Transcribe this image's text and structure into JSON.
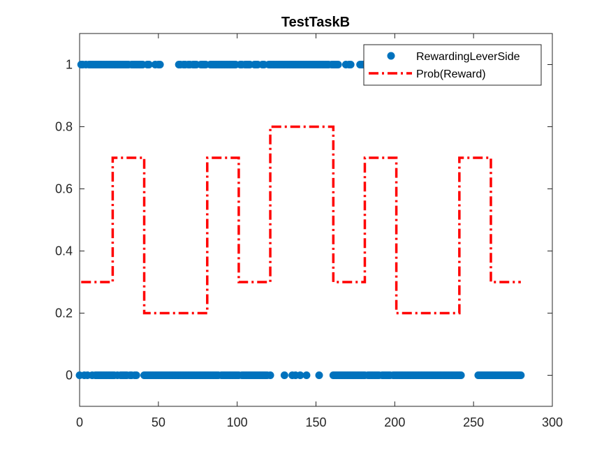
{
  "chart_data": {
    "type": "scatter+step-line",
    "title": "TestTaskB",
    "xlabel": "",
    "ylabel": "",
    "xlim": [
      0,
      300
    ],
    "ylim": [
      -0.1,
      1.1
    ],
    "xticks": [
      0,
      50,
      100,
      150,
      200,
      250,
      300
    ],
    "yticks": [
      0,
      0.2,
      0.4,
      0.6,
      0.8,
      1
    ],
    "ytick_labels": [
      "0",
      "0.2",
      "0.4",
      "0.6",
      "0.8",
      "1"
    ],
    "xtick_labels": [
      "0",
      "50",
      "100",
      "150",
      "200",
      "250",
      "300"
    ],
    "grid": false,
    "legend_position": "top-right",
    "series": [
      {
        "name": "RewardingLeverSide",
        "kind": "scatter",
        "color": "#0072BD",
        "ones_x": [
          1,
          2,
          4,
          6,
          7,
          8,
          9,
          10,
          11,
          12,
          13,
          14,
          15,
          16,
          17,
          18,
          19,
          20,
          21,
          22,
          23,
          24,
          25,
          26,
          27,
          28,
          29,
          30,
          31,
          33,
          34,
          35,
          36,
          37,
          38,
          39,
          40,
          43,
          44,
          48,
          50,
          51,
          63,
          64,
          66,
          67,
          69,
          70,
          72,
          73,
          74,
          77,
          78,
          79,
          80,
          83,
          84,
          85,
          86,
          87,
          88,
          89,
          90,
          91,
          92,
          93,
          94,
          95,
          96,
          97,
          98,
          99,
          102,
          103,
          105,
          106,
          107,
          108,
          111,
          112,
          113,
          116,
          117,
          120,
          121,
          122,
          123,
          124,
          125,
          126,
          127,
          128,
          129,
          130,
          131,
          132,
          133,
          134,
          135,
          136,
          137,
          138,
          139,
          140,
          141,
          142,
          143,
          144,
          145,
          146,
          147,
          148,
          149,
          150,
          151,
          152,
          153,
          154,
          155,
          156,
          157,
          158,
          160,
          161,
          162,
          163,
          164,
          169,
          171,
          172,
          178,
          179,
          180,
          181,
          182,
          184,
          185,
          186,
          187,
          190,
          191,
          192,
          193,
          194,
          195,
          196,
          197,
          198,
          199,
          200,
          201,
          204,
          206,
          211,
          212
        ],
        "zeros_x": [
          0,
          3,
          5,
          8,
          10,
          11,
          12,
          13,
          14,
          15,
          16,
          17,
          18,
          19,
          20,
          21,
          22,
          24,
          26,
          27,
          28,
          29,
          30,
          32,
          33,
          35,
          36,
          41,
          42,
          43,
          44,
          45,
          46,
          47,
          48,
          49,
          50,
          51,
          52,
          53,
          54,
          55,
          56,
          57,
          58,
          59,
          60,
          61,
          62,
          63,
          64,
          65,
          66,
          67,
          68,
          69,
          70,
          71,
          72,
          73,
          74,
          75,
          76,
          77,
          78,
          79,
          80,
          81,
          82,
          83,
          84,
          85,
          86,
          87,
          88,
          90,
          91,
          92,
          93,
          94,
          95,
          96,
          97,
          98,
          99,
          100,
          101,
          103,
          104,
          105,
          106,
          107,
          108,
          109,
          110,
          111,
          112,
          113,
          114,
          115,
          116,
          117,
          118,
          119,
          121,
          130,
          135,
          137,
          140,
          144,
          152,
          161,
          162,
          163,
          164,
          165,
          166,
          167,
          168,
          169,
          170,
          171,
          172,
          173,
          174,
          175,
          176,
          177,
          178,
          179,
          180,
          181,
          183,
          184,
          185,
          186,
          187,
          188,
          189,
          190,
          192,
          193,
          194,
          195,
          196,
          197,
          199,
          200,
          201,
          202,
          203,
          204,
          205,
          206,
          207,
          208,
          209,
          210,
          211,
          212,
          213,
          214,
          215,
          216,
          217,
          218,
          219,
          220,
          221,
          222,
          223,
          224,
          225,
          226,
          227,
          228,
          229,
          230,
          231,
          232,
          233,
          234,
          235,
          236,
          237,
          238,
          239,
          240,
          241,
          242,
          253,
          254,
          255,
          256,
          257,
          258,
          259,
          260,
          261,
          262,
          263,
          264,
          265,
          266,
          267,
          268,
          269,
          270,
          271,
          272,
          273,
          274,
          275,
          276,
          277,
          278,
          279,
          280
        ]
      },
      {
        "name": "Prob(Reward)",
        "kind": "step",
        "color": "#FF0000",
        "x": [
          1,
          21,
          41,
          81,
          101,
          121,
          161,
          181,
          201,
          241,
          261,
          280
        ],
        "y": [
          0.3,
          0.7,
          0.2,
          0.7,
          0.3,
          0.8,
          0.3,
          0.7,
          0.2,
          0.7,
          0.3,
          0.3
        ]
      }
    ]
  }
}
